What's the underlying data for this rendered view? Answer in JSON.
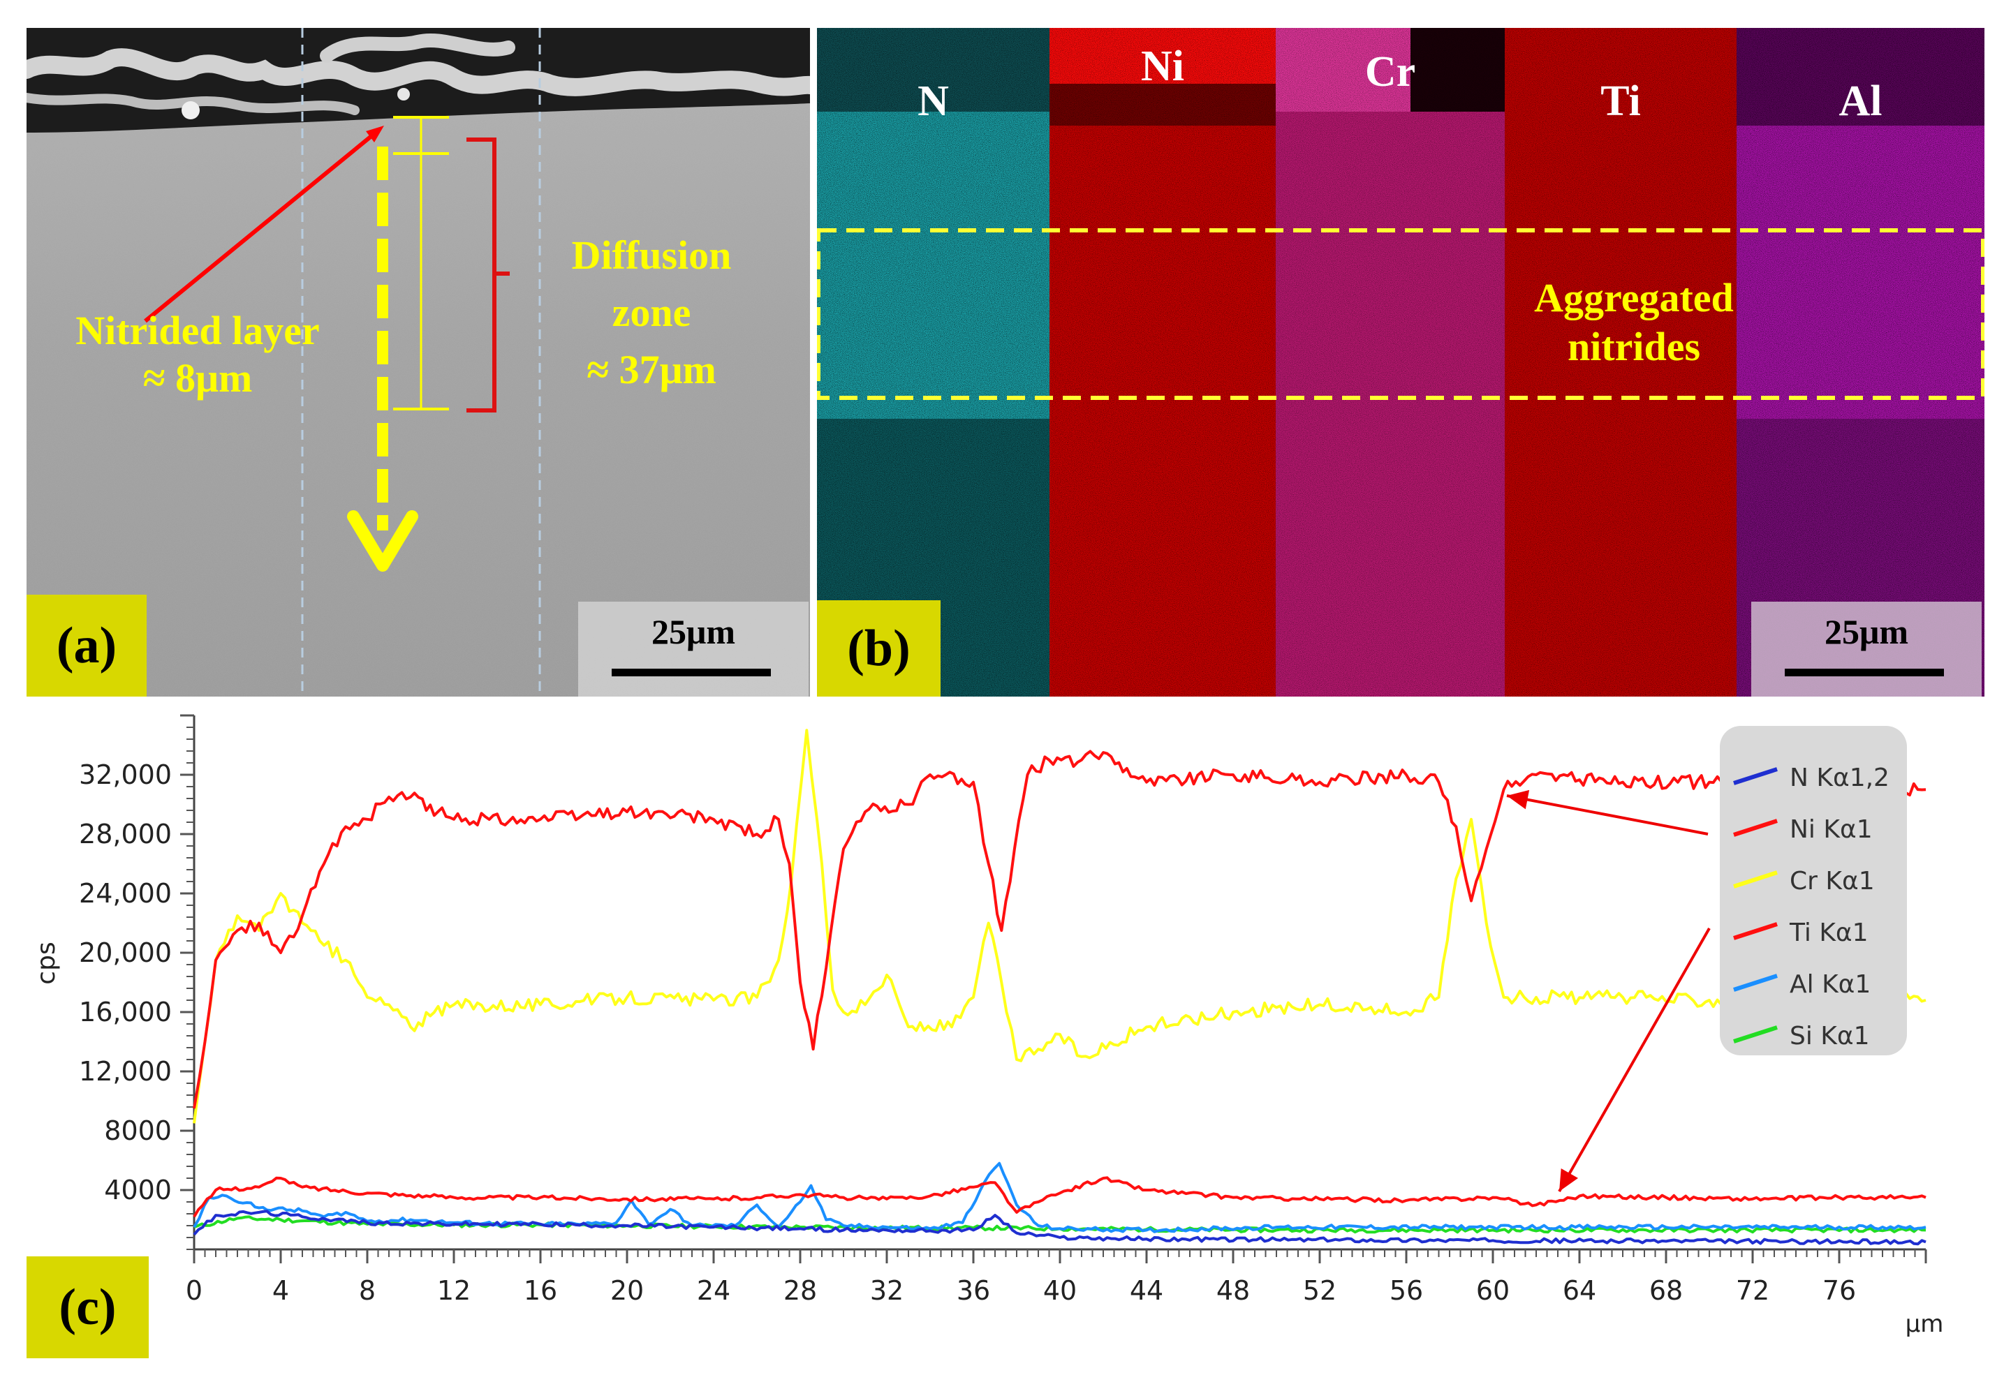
{
  "panel_a": {
    "label": "(a)",
    "annotation_layer": [
      "Nitrided layer",
      "≈ 8μm"
    ],
    "annotation_zone": [
      "Diffusion",
      "zone",
      "≈ 37μm"
    ],
    "scale_bar": "25μm"
  },
  "panel_b": {
    "label": "(b)",
    "elements": [
      "N",
      "Ni",
      "Cr",
      "Ti",
      "Al"
    ],
    "annotation": [
      "Aggregated",
      "nitrides"
    ],
    "scale_bar": "25μm"
  },
  "panel_c": {
    "label": "(c)"
  },
  "colors": {
    "N": "#1f2fd0",
    "Ni": "#ff1010",
    "Cr": "#ffff1a",
    "Ti": "#ff1010",
    "Al": "#1a8fff",
    "Si": "#22dd22",
    "map_N": "#1b9aa0",
    "map_Ni": "#d00000",
    "map_Cr": "#c81f78",
    "map_Ti": "#c60000",
    "map_Al": "#b014b0"
  },
  "chart_data": {
    "type": "line",
    "title": "",
    "xlabel": "μm",
    "ylabel": "cps",
    "xlim": [
      0,
      80
    ],
    "ylim": [
      0,
      36000
    ],
    "x_ticks": [
      0,
      4,
      8,
      12,
      16,
      20,
      24,
      28,
      32,
      36,
      40,
      44,
      48,
      52,
      56,
      60,
      64,
      68,
      72,
      76
    ],
    "y_ticks": [
      4000,
      8000,
      12000,
      16000,
      20000,
      24000,
      28000,
      32000
    ],
    "y_tick_labels": [
      "4000",
      "8000",
      "12,000",
      "16,000",
      "20,000",
      "24,000",
      "28,000",
      "32,000"
    ],
    "legend_position": "top-right",
    "series": [
      {
        "name": "N Kα1,2",
        "color": "#1f2fd0",
        "points": [
          [
            0,
            1000
          ],
          [
            1,
            2300
          ],
          [
            3,
            2500
          ],
          [
            5,
            2200
          ],
          [
            8,
            1800
          ],
          [
            12,
            1700
          ],
          [
            16,
            1700
          ],
          [
            20,
            1600
          ],
          [
            24,
            1500
          ],
          [
            28,
            1400
          ],
          [
            30,
            1300
          ],
          [
            32,
            1300
          ],
          [
            34,
            1250
          ],
          [
            36,
            1300
          ],
          [
            37,
            2300
          ],
          [
            38,
            1100
          ],
          [
            40,
            800
          ],
          [
            44,
            700
          ],
          [
            50,
            650
          ],
          [
            60,
            600
          ],
          [
            70,
            550
          ],
          [
            80,
            500
          ]
        ]
      },
      {
        "name": "Ni Kα1",
        "color": "#ff1010",
        "points": [
          [
            0,
            9500
          ],
          [
            0.5,
            14000
          ],
          [
            1,
            19500
          ],
          [
            2,
            21500
          ],
          [
            3,
            22000
          ],
          [
            4,
            20000
          ],
          [
            5,
            22500
          ],
          [
            6,
            26000
          ],
          [
            7,
            28500
          ],
          [
            8,
            29000
          ],
          [
            9,
            30500
          ],
          [
            10,
            30500
          ],
          [
            12,
            29000
          ],
          [
            16,
            29000
          ],
          [
            20,
            29500
          ],
          [
            24,
            29000
          ],
          [
            26,
            28000
          ],
          [
            27,
            29000
          ],
          [
            27.5,
            26000
          ],
          [
            28,
            18000
          ],
          [
            28.6,
            13500
          ],
          [
            29.2,
            19000
          ],
          [
            30,
            27000
          ],
          [
            31,
            29500
          ],
          [
            33,
            30000
          ],
          [
            34,
            32000
          ],
          [
            36,
            31500
          ],
          [
            36.7,
            26000
          ],
          [
            37.3,
            21500
          ],
          [
            37.9,
            27000
          ],
          [
            38.5,
            32000
          ],
          [
            39.5,
            33000
          ],
          [
            41,
            33000
          ],
          [
            42,
            33500
          ],
          [
            44,
            31500
          ],
          [
            48,
            32000
          ],
          [
            52,
            31500
          ],
          [
            56,
            32000
          ],
          [
            57.5,
            31500
          ],
          [
            58.3,
            28500
          ],
          [
            59,
            23500
          ],
          [
            59.7,
            27000
          ],
          [
            60.5,
            31000
          ],
          [
            62,
            32000
          ],
          [
            66,
            31500
          ],
          [
            70,
            31500
          ],
          [
            75,
            31500
          ],
          [
            80,
            31000
          ]
        ]
      },
      {
        "name": "Cr Kα1",
        "color": "#ffff1a",
        "points": [
          [
            0,
            8500
          ],
          [
            0.5,
            14000
          ],
          [
            1,
            19500
          ],
          [
            2,
            22500
          ],
          [
            3,
            21500
          ],
          [
            4,
            24000
          ],
          [
            5,
            22000
          ],
          [
            6,
            20500
          ],
          [
            7,
            19500
          ],
          [
            8,
            17000
          ],
          [
            9,
            16500
          ],
          [
            10,
            15000
          ],
          [
            12,
            16500
          ],
          [
            16,
            16500
          ],
          [
            20,
            17000
          ],
          [
            24,
            16800
          ],
          [
            26,
            17000
          ],
          [
            27,
            19500
          ],
          [
            27.6,
            25000
          ],
          [
            28.3,
            35000
          ],
          [
            29,
            26000
          ],
          [
            29.5,
            17500
          ],
          [
            30,
            16000
          ],
          [
            31,
            16500
          ],
          [
            32,
            18500
          ],
          [
            33,
            15000
          ],
          [
            35,
            15000
          ],
          [
            36,
            17000
          ],
          [
            36.7,
            22000
          ],
          [
            37.3,
            18000
          ],
          [
            38,
            12800
          ],
          [
            39,
            13500
          ],
          [
            40,
            14500
          ],
          [
            41,
            13000
          ],
          [
            44,
            15000
          ],
          [
            48,
            16000
          ],
          [
            52,
            16500
          ],
          [
            56,
            16000
          ],
          [
            57.5,
            17000
          ],
          [
            58.3,
            25000
          ],
          [
            59,
            29000
          ],
          [
            59.7,
            22000
          ],
          [
            60.5,
            17000
          ],
          [
            62,
            17000
          ],
          [
            66,
            17000
          ],
          [
            70,
            16800
          ],
          [
            75,
            17000
          ],
          [
            80,
            16800
          ]
        ]
      },
      {
        "name": "Ti Kα1",
        "color": "#ff1010",
        "points": [
          [
            0,
            2200
          ],
          [
            1,
            4000
          ],
          [
            3,
            4200
          ],
          [
            4,
            4800
          ],
          [
            5,
            4200
          ],
          [
            8,
            3800
          ],
          [
            12,
            3500
          ],
          [
            16,
            3500
          ],
          [
            20,
            3400
          ],
          [
            24,
            3400
          ],
          [
            26,
            3500
          ],
          [
            28,
            3700
          ],
          [
            30,
            3500
          ],
          [
            32,
            3400
          ],
          [
            34,
            3600
          ],
          [
            36,
            4200
          ],
          [
            37,
            4500
          ],
          [
            38,
            2500
          ],
          [
            39,
            3200
          ],
          [
            40,
            3800
          ],
          [
            42,
            4800
          ],
          [
            44,
            4000
          ],
          [
            48,
            3500
          ],
          [
            52,
            3400
          ],
          [
            56,
            3300
          ],
          [
            60,
            3500
          ],
          [
            62,
            3000
          ],
          [
            64,
            3600
          ],
          [
            68,
            3500
          ],
          [
            72,
            3400
          ],
          [
            76,
            3500
          ],
          [
            80,
            3500
          ]
        ]
      },
      {
        "name": "Al Kα1",
        "color": "#1a8fff",
        "points": [
          [
            0,
            1500
          ],
          [
            0.7,
            3500
          ],
          [
            1.5,
            3600
          ],
          [
            3,
            2800
          ],
          [
            5,
            2600
          ],
          [
            6,
            2200
          ],
          [
            7,
            2500
          ],
          [
            8,
            1900
          ],
          [
            10,
            2000
          ],
          [
            12,
            1800
          ],
          [
            16,
            1700
          ],
          [
            18,
            1700
          ],
          [
            19.5,
            1800
          ],
          [
            20.2,
            3300
          ],
          [
            21,
            1700
          ],
          [
            22,
            2700
          ],
          [
            23,
            1600
          ],
          [
            25,
            1600
          ],
          [
            26,
            3000
          ],
          [
            27,
            1500
          ],
          [
            28,
            3200
          ],
          [
            28.5,
            4300
          ],
          [
            29.2,
            2000
          ],
          [
            30,
            1600
          ],
          [
            32,
            1500
          ],
          [
            34,
            1400
          ],
          [
            35.5,
            1800
          ],
          [
            36.5,
            4500
          ],
          [
            37.2,
            5800
          ],
          [
            38,
            3000
          ],
          [
            39,
            1600
          ],
          [
            40,
            1400
          ],
          [
            44,
            1300
          ],
          [
            50,
            1500
          ],
          [
            60,
            1500
          ],
          [
            70,
            1500
          ],
          [
            80,
            1500
          ]
        ]
      },
      {
        "name": "Si Kα1",
        "color": "#22dd22",
        "points": [
          [
            0,
            1500
          ],
          [
            2,
            2100
          ],
          [
            4,
            2000
          ],
          [
            8,
            1700
          ],
          [
            12,
            1650
          ],
          [
            16,
            1650
          ],
          [
            20,
            1600
          ],
          [
            24,
            1550
          ],
          [
            28,
            1500
          ],
          [
            32,
            1450
          ],
          [
            36,
            1450
          ],
          [
            40,
            1400
          ],
          [
            44,
            1350
          ],
          [
            50,
            1300
          ],
          [
            60,
            1300
          ],
          [
            70,
            1300
          ],
          [
            80,
            1300
          ]
        ]
      }
    ]
  }
}
